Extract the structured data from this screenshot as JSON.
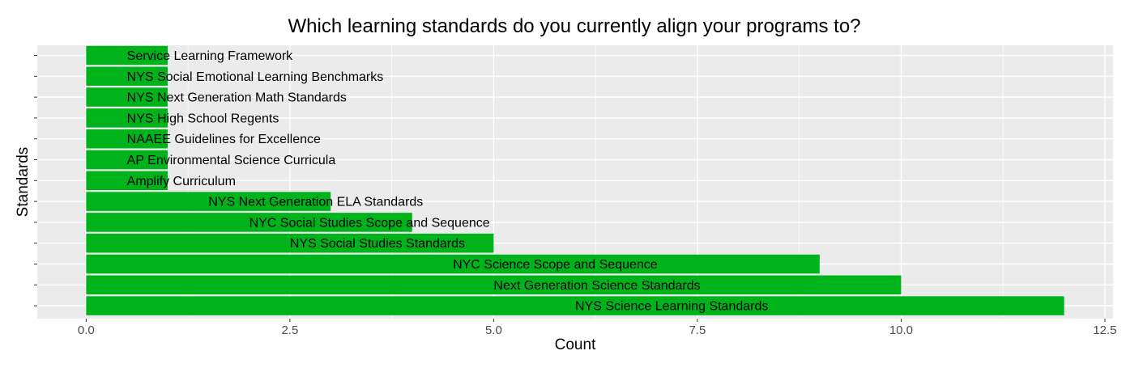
{
  "chart_data": {
    "type": "bar",
    "orientation": "horizontal",
    "title": "Which learning standards do you currently align your programs to?",
    "xlabel": "Count",
    "ylabel": "Standards",
    "xlim": [
      -0.6,
      12.6
    ],
    "xticks": [
      0,
      2.5,
      5,
      7.5,
      10,
      12.5
    ],
    "xtick_labels": [
      "0.0",
      "2.5",
      "5.0",
      "7.5",
      "10.0",
      "12.5"
    ],
    "grid": true,
    "bar_color": "#00b31b",
    "panel_color": "#ebebeb",
    "grid_color": "#ffffff",
    "categories": [
      "Service Learning Framework",
      "NYS Social Emotional Learning Benchmarks",
      "NYS Next Generation Math Standards",
      "NYS High School Regents",
      "NAAEE Guidelines for Excellence",
      "AP Environmental Science Curricula",
      "Amplify Curriculum",
      "NYS Next Generation ELA Standards",
      "NYC Social Studies Scope and Sequence",
      "NYS Social Studies Standards",
      "NYC Science Scope and Sequence",
      "Next Generation Science Standards",
      "NYS Science Learning Standards"
    ],
    "values": [
      1,
      1,
      1,
      1,
      1,
      1,
      1,
      3,
      4,
      5,
      9,
      10,
      12
    ]
  }
}
